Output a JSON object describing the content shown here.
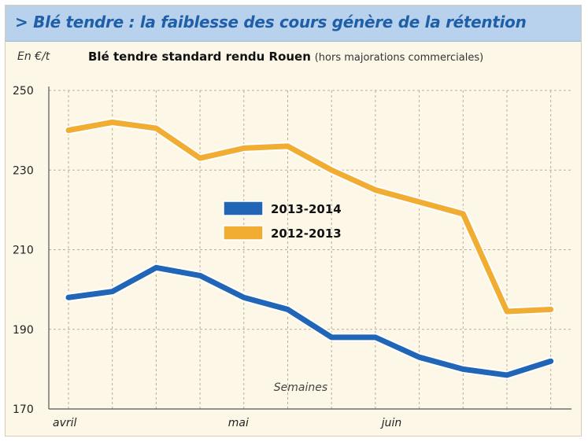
{
  "header": {
    "title": "> Blé tendre : la faiblesse des cours génère de la rétention"
  },
  "chart_data": {
    "type": "line",
    "title": "Blé tendre standard rendu Rouen",
    "title_note": "(hors majorations commerciales)",
    "ylabel": "En €/t",
    "xlabel": "Semaines",
    "ylim": [
      170,
      250
    ],
    "yticks": [
      170,
      190,
      210,
      230,
      250
    ],
    "x_labels": [
      {
        "label": "avril",
        "week": 0
      },
      {
        "label": "mai",
        "week": 4
      },
      {
        "label": "juin",
        "week": 7.5
      }
    ],
    "grid": true,
    "legend_position": "center-left",
    "series": [
      {
        "name": "2013-2014",
        "color": "#2166b6",
        "values": [
          198,
          199.5,
          205.5,
          203.5,
          198,
          195,
          188,
          188,
          183,
          180,
          178.5,
          182
        ]
      },
      {
        "name": "2012-2013",
        "color": "#f1ac32",
        "values": [
          240,
          242,
          240.5,
          233,
          235.5,
          236,
          230,
          225,
          222,
          219,
          194.5,
          195
        ]
      }
    ]
  }
}
